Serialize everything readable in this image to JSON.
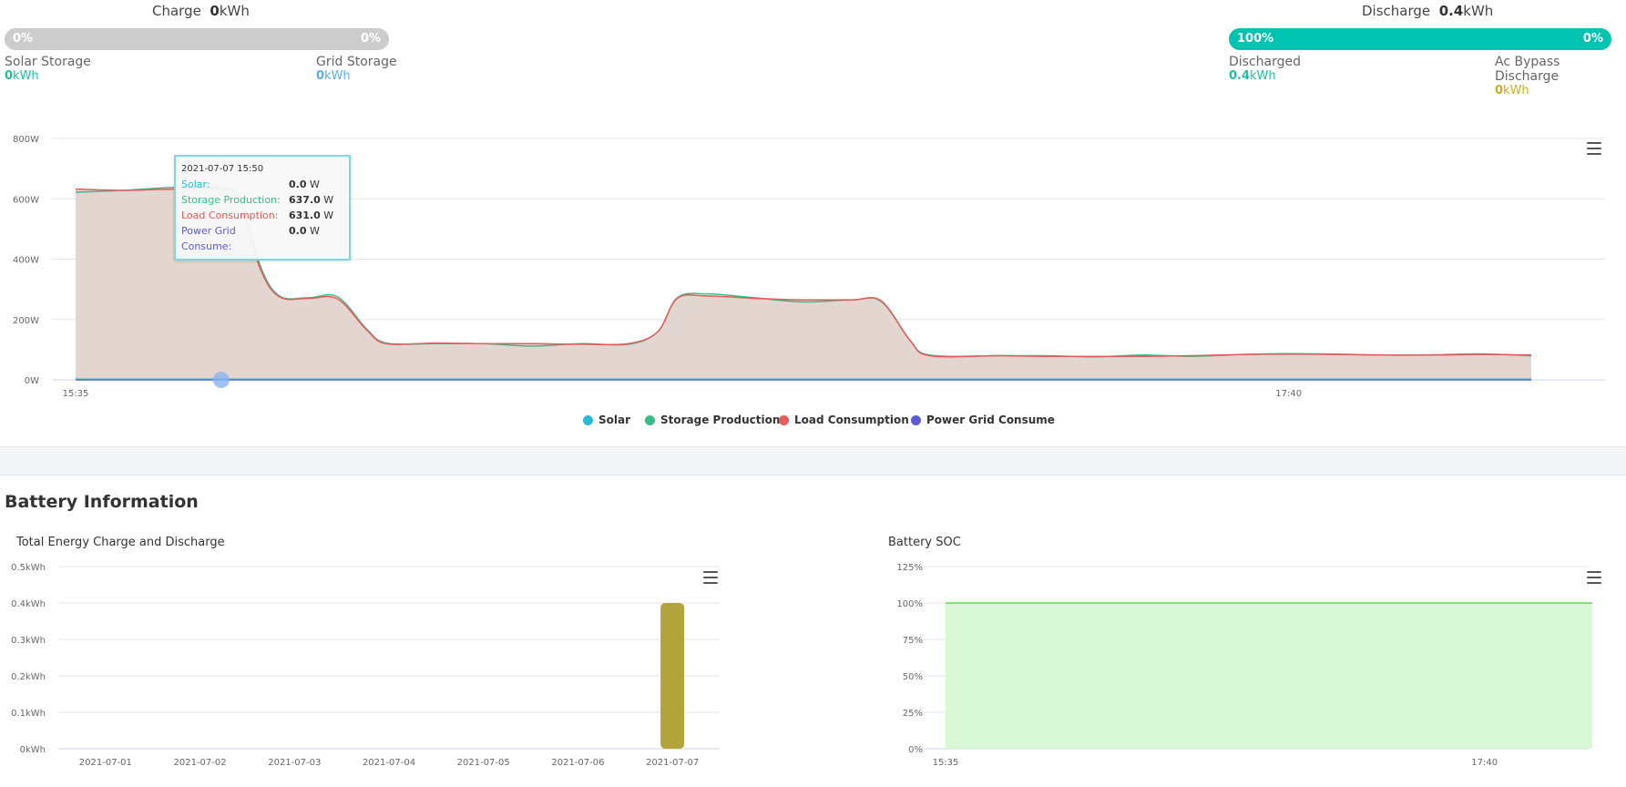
{
  "charge": {
    "label": "Charge",
    "value": "0",
    "unit": "kWh",
    "bar": {
      "left_pct": "0%",
      "right_pct": "0%",
      "fill_fraction": 0,
      "color": "#cccccc"
    },
    "solar_storage": {
      "label": "Solar Storage",
      "value": "0",
      "unit": "kWh",
      "color": "#1fbf9f"
    },
    "grid_storage": {
      "label": "Grid Storage",
      "value": "0",
      "unit": "kWh",
      "color": "#5aaee8"
    }
  },
  "discharge": {
    "label": "Discharge",
    "value": "0.4",
    "unit": "kWh",
    "bar": {
      "left_pct": "100%",
      "right_pct": "0%",
      "fill_fraction": 1.0,
      "color": "#00c4b0"
    },
    "discharged": {
      "label": "Discharged",
      "value": "0.4",
      "unit": "kWh",
      "color": "#1fbf9f"
    },
    "ac_bypass": {
      "label": "Ac Bypass Discharge",
      "value": "0",
      "unit": "kWh",
      "color": "#c8b020"
    }
  },
  "tooltip": {
    "title": "2021-07-07 15:50",
    "rows": [
      {
        "label": "Solar:",
        "value": "0.0",
        "unit": "W",
        "color": "#2bbad6"
      },
      {
        "label": "Storage Production:",
        "value": "637.0",
        "unit": "W",
        "color": "#3dba8a"
      },
      {
        "label": "Load Consumption:",
        "value": "631.0",
        "unit": "W",
        "color": "#e85a58"
      },
      {
        "label": "Power Grid Consume:",
        "value": "0.0",
        "unit": "W",
        "color": "#5b5bd6"
      }
    ]
  },
  "battery_section_title": "Battery Information",
  "energy_chart_title": "Total Energy Charge and Discharge",
  "soc_chart_title": "Battery SOC",
  "colors": {
    "solar": "#2bbad6",
    "storage": "#3dba8a",
    "load": "#e85a58",
    "grid": "#5b5bd6",
    "area_fill": "#e3d6d0",
    "discharge_bar": "#b2a43a",
    "soc_fill": "#d9f8d6",
    "soc_line": "#69d05f"
  },
  "chart_data": [
    {
      "type": "area",
      "yticks": [
        "0W",
        "200W",
        "400W",
        "600W",
        "800W"
      ],
      "ylim": [
        0,
        800
      ],
      "xticks": [
        {
          "t": 0,
          "label": "15:35"
        },
        {
          "t": 125,
          "label": "17:40"
        }
      ],
      "x_minutes_from": "15:35",
      "x_range": [
        0,
        150
      ],
      "grid": true,
      "legend_position": "bottom",
      "hover_x": 15,
      "series": [
        {
          "name": "Solar",
          "values": [
            [
              0,
              0
            ],
            [
              150,
              0
            ]
          ]
        },
        {
          "name": "Storage Production",
          "values": [
            [
              0,
              622
            ],
            [
              5,
              628
            ],
            [
              10,
              638
            ],
            [
              15,
              637
            ],
            [
              17,
              600
            ],
            [
              19,
              380
            ],
            [
              21,
              278
            ],
            [
              24,
              272
            ],
            [
              27,
              275
            ],
            [
              30,
              168
            ],
            [
              32,
              122
            ],
            [
              37,
              120
            ],
            [
              42,
              120
            ],
            [
              47,
              112
            ],
            [
              52,
              120
            ],
            [
              57,
              118
            ],
            [
              60,
              160
            ],
            [
              62,
              272
            ],
            [
              65,
              285
            ],
            [
              70,
              272
            ],
            [
              75,
              258
            ],
            [
              80,
              265
            ],
            [
              83,
              260
            ],
            [
              86,
              130
            ],
            [
              88,
              82
            ],
            [
              95,
              80
            ],
            [
              100,
              80
            ],
            [
              105,
              76
            ],
            [
              110,
              82
            ],
            [
              115,
              78
            ],
            [
              120,
              84
            ],
            [
              125,
              87
            ],
            [
              130,
              85
            ],
            [
              135,
              82
            ],
            [
              140,
              83
            ],
            [
              145,
              86
            ],
            [
              150,
              80
            ]
          ]
        },
        {
          "name": "Load Consumption",
          "values": [
            [
              0,
              632
            ],
            [
              5,
              628
            ],
            [
              10,
              632
            ],
            [
              15,
              631
            ],
            [
              17,
              590
            ],
            [
              19,
              370
            ],
            [
              21,
              275
            ],
            [
              24,
              270
            ],
            [
              27,
              268
            ],
            [
              30,
              165
            ],
            [
              32,
              120
            ],
            [
              37,
              122
            ],
            [
              42,
              120
            ],
            [
              47,
              120
            ],
            [
              52,
              118
            ],
            [
              57,
              120
            ],
            [
              60,
              160
            ],
            [
              62,
              270
            ],
            [
              65,
              278
            ],
            [
              70,
              270
            ],
            [
              75,
              265
            ],
            [
              80,
              265
            ],
            [
              83,
              262
            ],
            [
              86,
              130
            ],
            [
              88,
              80
            ],
            [
              95,
              80
            ],
            [
              100,
              78
            ],
            [
              105,
              78
            ],
            [
              110,
              78
            ],
            [
              115,
              80
            ],
            [
              120,
              84
            ],
            [
              125,
              85
            ],
            [
              130,
              84
            ],
            [
              135,
              82
            ],
            [
              140,
              82
            ],
            [
              145,
              84
            ],
            [
              150,
              82
            ]
          ]
        },
        {
          "name": "Power Grid Consume",
          "values": [
            [
              0,
              0
            ],
            [
              150,
              0
            ]
          ]
        }
      ]
    },
    {
      "type": "bar",
      "title": "Total Energy Charge and Discharge",
      "categories": [
        "2021-07-01",
        "2021-07-02",
        "2021-07-03",
        "2021-07-04",
        "2021-07-05",
        "2021-07-06",
        "2021-07-07"
      ],
      "yticks": [
        "0kWh",
        "0.1kWh",
        "0.2kWh",
        "0.3kWh",
        "0.4kWh",
        "0.5kWh"
      ],
      "ylim": [
        0,
        0.5
      ],
      "series": [
        {
          "values": [
            0,
            0,
            0,
            0,
            0,
            0,
            0
          ]
        },
        {
          "values": [
            0,
            0,
            0,
            0,
            0,
            0,
            0.4
          ]
        }
      ]
    },
    {
      "type": "area",
      "title": "Battery SOC",
      "yticks": [
        "0%",
        "25%",
        "50%",
        "75%",
        "100%",
        "125%"
      ],
      "ylim": [
        0,
        125
      ],
      "xticks": [
        {
          "t": 0,
          "label": "15:35"
        },
        {
          "t": 125,
          "label": "17:40"
        }
      ],
      "x_range": [
        0,
        150
      ],
      "series": [
        {
          "values": [
            [
              0,
              100
            ],
            [
              150,
              100
            ]
          ]
        }
      ]
    }
  ]
}
